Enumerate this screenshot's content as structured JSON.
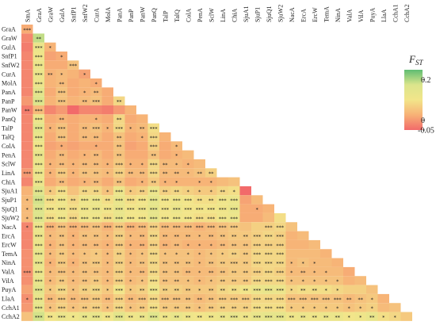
{
  "chart_data": {
    "type": "heatmap",
    "title": "",
    "layout": "lower-triangle",
    "legend_position": "right",
    "labels": [
      "SmA",
      "GraA",
      "GraW",
      "GulA",
      "SnfP1",
      "SnfW2",
      "CurA",
      "MolA",
      "PanA",
      "PanP",
      "PanW",
      "PanQ",
      "TalP",
      "TalQ",
      "ColA",
      "PenA",
      "SclW",
      "LinA",
      "ChiA",
      "SjuA1",
      "SjuP1",
      "SjuQ1",
      "SjuW2",
      "NacA",
      "ErcA",
      "ErcW",
      "TemA",
      "NinA",
      "ValA",
      "VilA",
      "PuyA",
      "LlaA",
      "CchA1",
      "CchA2"
    ],
    "legend": {
      "title": "F",
      "title_subscript": "ST",
      "ticks": [
        {
          "value": 0.2,
          "label": "0.2"
        },
        {
          "value": 0,
          "label": "0"
        },
        {
          "value": -0.05,
          "label": "-0.05"
        }
      ],
      "range": [
        -0.05,
        0.25
      ],
      "colors": [
        "#f26a6a",
        "#f7b176",
        "#f2e58a",
        "#dbe58c",
        "#5fbd72"
      ]
    },
    "values": [
      [
        0.02
      ],
      [
        -0.02,
        0.19
      ],
      [
        -0.03,
        0.12,
        0.03
      ],
      [
        -0.02,
        0.11,
        0.01,
        0.02
      ],
      [
        -0.02,
        0.12,
        0.02,
        0.02,
        0.05
      ],
      [
        -0.02,
        0.12,
        0.03,
        0.04,
        0.03,
        0.01
      ],
      [
        -0.02,
        0.12,
        0.03,
        0.04,
        0.02,
        0.03,
        0.02
      ],
      [
        -0.02,
        0.15,
        0.02,
        0.05,
        0.02,
        0.03,
        0.04,
        0.02
      ],
      [
        0.0,
        0.17,
        0.03,
        0.05,
        0.03,
        0.04,
        0.05,
        0.02,
        0.08
      ],
      [
        -0.03,
        0.04,
        -0.02,
        0.0,
        -0.05,
        -0.02,
        -0.02,
        -0.03,
        0.0,
        0.03
      ],
      [
        -0.02,
        0.12,
        0.02,
        0.03,
        0.02,
        0.03,
        0.03,
        0.02,
        0.08,
        0.02,
        0.03
      ],
      [
        -0.02,
        0.15,
        0.03,
        0.05,
        0.02,
        0.04,
        0.05,
        0.03,
        0.08,
        0.03,
        0.04,
        0.09
      ],
      [
        -0.02,
        0.13,
        0.02,
        0.05,
        0.02,
        0.04,
        0.04,
        0.02,
        0.05,
        0.02,
        0.03,
        0.08,
        0.03
      ],
      [
        -0.02,
        0.11,
        0.01,
        0.02,
        0.01,
        0.02,
        0.02,
        0.02,
        0.05,
        0.01,
        0.02,
        0.07,
        0.02,
        0.04
      ],
      [
        -0.02,
        0.13,
        0.02,
        0.04,
        0.02,
        0.03,
        0.04,
        0.02,
        0.05,
        0.02,
        0.02,
        0.05,
        0.02,
        0.03,
        0.04
      ],
      [
        -0.02,
        0.12,
        0.03,
        0.04,
        0.03,
        0.04,
        0.04,
        0.03,
        0.06,
        0.03,
        0.03,
        0.08,
        0.04,
        0.04,
        0.03,
        0.04
      ],
      [
        0.0,
        0.12,
        0.03,
        0.06,
        0.03,
        0.05,
        0.05,
        0.04,
        0.07,
        0.04,
        0.04,
        0.08,
        0.04,
        0.04,
        0.04,
        0.05,
        0.07
      ],
      [
        -0.02,
        0.12,
        0.02,
        0.04,
        0.02,
        0.03,
        0.04,
        0.02,
        0.05,
        0.02,
        0.03,
        0.06,
        0.03,
        0.03,
        0.03,
        0.03,
        0.03,
        0.04,
        0.05
      ],
      [
        0.03,
        0.16,
        0.06,
        0.09,
        0.05,
        0.08,
        0.08,
        0.05,
        0.12,
        0.06,
        0.07,
        0.12,
        0.07,
        0.08,
        0.07,
        0.06,
        0.06,
        0.08,
        0.09,
        -0.05
      ],
      [
        0.04,
        0.18,
        0.09,
        0.11,
        0.08,
        0.11,
        0.12,
        0.09,
        0.13,
        0.09,
        0.1,
        0.14,
        0.1,
        0.11,
        0.1,
        0.09,
        0.09,
        0.11,
        0.12,
        0.01,
        0.04
      ],
      [
        0.04,
        0.17,
        0.1,
        0.11,
        0.09,
        0.11,
        0.12,
        0.1,
        0.13,
        0.1,
        0.11,
        0.14,
        0.1,
        0.12,
        0.1,
        0.1,
        0.1,
        0.11,
        0.13,
        0.02,
        0.02,
        0.03
      ],
      [
        0.04,
        0.17,
        0.09,
        0.11,
        0.08,
        0.11,
        0.11,
        0.09,
        0.13,
        0.1,
        0.1,
        0.14,
        0.1,
        0.11,
        0.1,
        0.09,
        0.09,
        0.11,
        0.12,
        0.02,
        0.02,
        0.04,
        0.09
      ],
      [
        -0.02,
        0.12,
        0.03,
        0.05,
        0.03,
        0.04,
        0.05,
        0.03,
        0.06,
        0.03,
        0.04,
        0.07,
        0.04,
        0.04,
        0.04,
        0.03,
        0.04,
        0.05,
        0.06,
        0.05,
        0.07,
        0.07,
        0.08,
        0.05
      ],
      [
        -0.02,
        0.12,
        0.04,
        0.05,
        0.03,
        0.05,
        0.05,
        0.04,
        0.07,
        0.04,
        0.04,
        0.08,
        0.04,
        0.04,
        0.04,
        0.04,
        0.04,
        0.05,
        0.06,
        0.06,
        0.07,
        0.08,
        0.07,
        0.03,
        0.04
      ],
      [
        -0.02,
        0.12,
        0.03,
        0.05,
        0.03,
        0.04,
        0.04,
        0.03,
        0.06,
        0.03,
        0.03,
        0.07,
        0.03,
        0.04,
        0.03,
        0.03,
        0.03,
        0.04,
        0.05,
        0.05,
        0.07,
        0.07,
        0.07,
        0.03,
        0.03,
        0.04
      ],
      [
        -0.01,
        0.13,
        0.04,
        0.06,
        0.04,
        0.05,
        0.06,
        0.04,
        0.07,
        0.04,
        0.05,
        0.08,
        0.05,
        0.05,
        0.05,
        0.04,
        0.05,
        0.06,
        0.07,
        0.06,
        0.08,
        0.08,
        0.08,
        0.04,
        0.04,
        0.04,
        0.03
      ],
      [
        -0.01,
        0.13,
        0.03,
        0.06,
        0.03,
        0.05,
        0.06,
        0.04,
        0.07,
        0.04,
        0.05,
        0.08,
        0.05,
        0.05,
        0.05,
        0.04,
        0.05,
        0.06,
        0.06,
        0.06,
        0.08,
        0.08,
        0.08,
        0.04,
        0.05,
        0.04,
        0.04,
        0.03
      ],
      [
        -0.01,
        0.12,
        0.04,
        0.05,
        0.04,
        0.05,
        0.05,
        0.04,
        0.07,
        0.04,
        0.04,
        0.08,
        0.05,
        0.05,
        0.04,
        0.04,
        0.04,
        0.05,
        0.06,
        0.06,
        0.07,
        0.08,
        0.07,
        0.04,
        0.04,
        0.04,
        0.04,
        0.04,
        0.02
      ],
      [
        -0.01,
        0.13,
        0.04,
        0.06,
        0.04,
        0.05,
        0.06,
        0.04,
        0.07,
        0.04,
        0.05,
        0.09,
        0.05,
        0.05,
        0.05,
        0.04,
        0.05,
        0.06,
        0.06,
        0.06,
        0.08,
        0.08,
        0.08,
        0.05,
        0.05,
        0.05,
        0.05,
        0.05,
        0.03,
        0.04
      ],
      [
        0.01,
        0.15,
        0.06,
        0.08,
        0.05,
        0.07,
        0.08,
        0.06,
        0.1,
        0.06,
        0.07,
        0.11,
        0.07,
        0.07,
        0.06,
        0.06,
        0.06,
        0.08,
        0.09,
        0.1,
        0.12,
        0.13,
        0.12,
        0.08,
        0.09,
        0.09,
        0.09,
        0.08,
        0.07,
        0.07,
        0.05
      ],
      [
        -0.01,
        0.13,
        0.04,
        0.06,
        0.04,
        0.05,
        0.06,
        0.04,
        0.07,
        0.04,
        0.05,
        0.08,
        0.05,
        0.05,
        0.05,
        0.04,
        0.05,
        0.06,
        0.06,
        0.06,
        0.08,
        0.08,
        0.08,
        0.05,
        0.05,
        0.05,
        0.05,
        0.05,
        0.04,
        0.05,
        0.06,
        0.03
      ],
      [
        0.0,
        0.14,
        0.05,
        0.07,
        0.05,
        0.06,
        0.07,
        0.05,
        0.08,
        0.05,
        0.06,
        0.09,
        0.06,
        0.06,
        0.06,
        0.05,
        0.06,
        0.07,
        0.07,
        0.07,
        0.09,
        0.09,
        0.09,
        0.06,
        0.06,
        0.06,
        0.06,
        0.06,
        0.05,
        0.06,
        0.07,
        0.04,
        0.05
      ],
      [
        0.05,
        0.18,
        0.1,
        0.12,
        0.11,
        0.13,
        0.13,
        0.1,
        0.15,
        0.11,
        0.12,
        0.16,
        0.11,
        0.13,
        0.11,
        0.1,
        0.11,
        0.12,
        0.13,
        0.11,
        0.13,
        0.14,
        0.14,
        0.11,
        0.12,
        0.11,
        0.12,
        0.12,
        0.1,
        0.11,
        0.13,
        0.09,
        0.08,
        0.06
      ]
    ],
    "significance": [
      [
        "***"
      ],
      [
        "",
        "**"
      ],
      [
        "",
        "***",
        "*"
      ],
      [
        "",
        "***",
        "",
        "*"
      ],
      [
        "",
        "***",
        "",
        "",
        "***"
      ],
      [
        "",
        "***",
        "**",
        "*",
        "",
        "*"
      ],
      [
        "",
        "***",
        "",
        "**",
        "",
        "",
        "*"
      ],
      [
        "",
        "***",
        "",
        "***",
        "",
        "*",
        "**",
        ""
      ],
      [
        "",
        "***",
        "",
        "***",
        "",
        "**",
        "***",
        "",
        "**"
      ],
      [
        "**",
        "***",
        "",
        "",
        "",
        "",
        "",
        "",
        "",
        ""
      ],
      [
        "",
        "***",
        "",
        "**",
        "",
        "",
        "*",
        "",
        "**",
        "",
        ""
      ],
      [
        "",
        "***",
        "*",
        "***",
        "",
        "**",
        "***",
        "*",
        "***",
        "*",
        "**",
        "***"
      ],
      [
        "",
        "***",
        "",
        "***",
        "",
        "**",
        "**",
        "",
        "**",
        "",
        "*",
        "***",
        ""
      ],
      [
        "",
        "***",
        "",
        "*",
        "",
        "",
        "*",
        "",
        "**",
        "",
        "",
        "***",
        "",
        "*"
      ],
      [
        "",
        "***",
        "",
        "**",
        "",
        "*",
        "**",
        "",
        "**",
        "",
        "",
        "**",
        "",
        "*",
        ""
      ],
      [
        "",
        "***",
        "*",
        "**",
        "*",
        "**",
        "**",
        "*",
        "***",
        "*",
        "*",
        "***",
        "**",
        "*",
        "*",
        ""
      ],
      [
        "***",
        "***",
        "*",
        "***",
        "*",
        "**",
        "**",
        "*",
        "***",
        "**",
        "**",
        "***",
        "**",
        "**",
        "*",
        "**",
        "**"
      ],
      [
        "",
        "***",
        "",
        "**",
        "",
        "*",
        "**",
        "",
        "**",
        "",
        "*",
        "**",
        "*",
        "*",
        "",
        "*",
        "*",
        ""
      ],
      [
        "",
        "***",
        "*",
        "***",
        "",
        "**",
        "**",
        "*",
        "***",
        "*",
        "**",
        "***",
        "**",
        "**",
        "*",
        "*",
        "*",
        "**",
        "*"
      ],
      [
        "*",
        "***",
        "***",
        "***",
        "**",
        "***",
        "***",
        "**",
        "***",
        "***",
        "***",
        "***",
        "***",
        "***",
        "***",
        "**",
        "**",
        "***",
        "***",
        ""
      ],
      [
        "*",
        "***",
        "***",
        "***",
        "***",
        "***",
        "***",
        "***",
        "***",
        "***",
        "***",
        "***",
        "***",
        "***",
        "***",
        "***",
        "***",
        "***",
        "***",
        "",
        "*"
      ],
      [
        "*",
        "***",
        "***",
        "***",
        "***",
        "***",
        "***",
        "***",
        "***",
        "***",
        "***",
        "***",
        "***",
        "***",
        "***",
        "***",
        "***",
        "***",
        "***",
        "",
        "",
        ""
      ],
      [
        "*",
        "***",
        "***",
        "***",
        "***",
        "***",
        "***",
        "***",
        "***",
        "***",
        "***",
        "***",
        "***",
        "***",
        "***",
        "***",
        "***",
        "***",
        "***",
        "",
        "",
        "***",
        "***"
      ],
      [
        "",
        "***",
        "*",
        "**",
        "*",
        "**",
        "**",
        "*",
        "***",
        "*",
        "**",
        "***",
        "**",
        "**",
        "**",
        "*",
        "**",
        "**",
        "**",
        "**",
        "***",
        "***",
        "***",
        ""
      ],
      [
        "",
        "***",
        "*",
        "**",
        "*",
        "**",
        "**",
        "*",
        "***",
        "*",
        "**",
        "***",
        "**",
        "**",
        "*",
        "*",
        "*",
        "**",
        "**",
        "**",
        "***",
        "***",
        "***",
        "",
        ""
      ],
      [
        "",
        "***",
        "*",
        "**",
        "*",
        "*",
        "*",
        "*",
        "**",
        "*",
        "*",
        "***",
        "*",
        "*",
        "*",
        "*",
        "*",
        "*",
        "**",
        "**",
        "***",
        "***",
        "***",
        "",
        "",
        ""
      ],
      [
        "",
        "***",
        "*",
        "***",
        "*",
        "**",
        "***",
        "*",
        "***",
        "*",
        "**",
        "***",
        "**",
        "**",
        "**",
        "*",
        "**",
        "**",
        "***",
        "**",
        "***",
        "***",
        "***",
        "*",
        "*",
        "*",
        ""
      ],
      [
        "***",
        "***",
        "*",
        "***",
        "*",
        "**",
        "**",
        "*",
        "***",
        "*",
        "**",
        "***",
        "**",
        "**",
        "**",
        "*",
        "**",
        "**",
        "**",
        "**",
        "***",
        "***",
        "***",
        "*",
        "**",
        "*",
        "*",
        ""
      ],
      [
        "",
        "***",
        "*",
        "**",
        "*",
        "**",
        "**",
        "*",
        "***",
        "*",
        "*",
        "***",
        "**",
        "**",
        "*",
        "*",
        "*",
        "**",
        "**",
        "**",
        "***",
        "***",
        "***",
        "*",
        "*",
        "*",
        "*",
        "*",
        ""
      ],
      [
        "",
        "***",
        "*",
        "***",
        "*",
        "**",
        "***",
        "*",
        "***",
        "*",
        "**",
        "***",
        "**",
        "**",
        "**",
        "*",
        "**",
        "**",
        "**",
        "**",
        "***",
        "***",
        "***",
        "*",
        "**",
        "**",
        "*",
        "*",
        "",
        ""
      ],
      [
        "*",
        "***",
        "**",
        "***",
        "**",
        "***",
        "***",
        "**",
        "***",
        "**",
        "***",
        "***",
        "***",
        "***",
        "**",
        "**",
        "**",
        "***",
        "***",
        "***",
        "***",
        "***",
        "***",
        "***",
        "***",
        "***",
        "***",
        "***",
        "**",
        "**",
        "*"
      ],
      [
        "",
        "***",
        "*",
        "***",
        "*",
        "**",
        "***",
        "*",
        "***",
        "*",
        "**",
        "***",
        "**",
        "**",
        "**",
        "*",
        "**",
        "**",
        "**",
        "**",
        "***",
        "***",
        "***",
        "*",
        "*",
        "*",
        "*",
        "*",
        "*",
        "*",
        "*",
        ""
      ],
      [
        "",
        "***",
        "**",
        "***",
        "*",
        "**",
        "***",
        "**",
        "***",
        "**",
        "**",
        "***",
        "**",
        "**",
        "**",
        "**",
        "**",
        "**",
        "***",
        "**",
        "***",
        "***",
        "***",
        "**",
        "**",
        "**",
        "**",
        "**",
        "*",
        "*",
        "**",
        "*",
        "*"
      ],
      [
        "***",
        "***",
        "***",
        "***",
        "***",
        "***",
        "***",
        "***",
        "***",
        "***",
        "***",
        "***",
        "***",
        "***",
        "***",
        "***",
        "***",
        "***",
        "***",
        "***",
        "***",
        "***",
        "***",
        "***",
        "***",
        "***",
        "***",
        "***",
        "***",
        "***",
        "***",
        "***",
        "***",
        "**"
      ]
    ]
  }
}
